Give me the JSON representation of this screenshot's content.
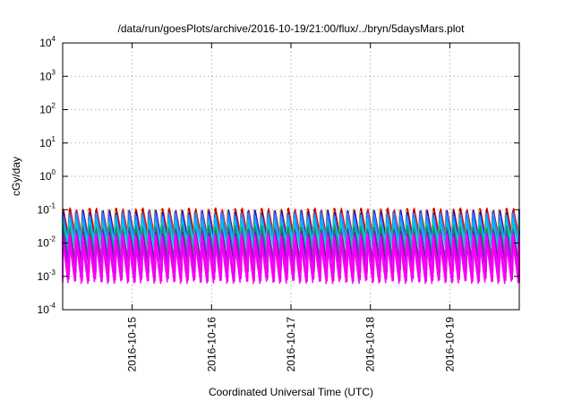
{
  "chart_data": {
    "type": "line",
    "title": "/data/run/goesPlots/archive/2016-10-19/21:00/flux/../bryn/5daysMars.plot",
    "xlabel": "Coordinated Universal Time (UTC)",
    "ylabel": "cGy/day",
    "yscale": "log",
    "ylim": [
      0.0001,
      10000
    ],
    "xlim": [
      "2016-10-14T03:00",
      "2016-10-19T21:00"
    ],
    "grid": true,
    "y_ticks": [
      {
        "base": "10",
        "exp": "-4",
        "value": 0.0001
      },
      {
        "base": "10",
        "exp": "-3",
        "value": 0.001
      },
      {
        "base": "10",
        "exp": "-2",
        "value": 0.01
      },
      {
        "base": "10",
        "exp": "-1",
        "value": 0.1
      },
      {
        "base": "10",
        "exp": "0",
        "value": 1
      },
      {
        "base": "10",
        "exp": "1",
        "value": 10
      },
      {
        "base": "10",
        "exp": "2",
        "value": 100
      },
      {
        "base": "10",
        "exp": "3",
        "value": 1000
      },
      {
        "base": "10",
        "exp": "4",
        "value": 10000
      }
    ],
    "x_ticks": [
      "2016-10-15",
      "2016-10-16",
      "2016-10-17",
      "2016-10-18",
      "2016-10-19"
    ],
    "sawtooth_period_hours": 2,
    "series": [
      {
        "color": "#ff0000",
        "peak": 0.1,
        "trough": 0.012
      },
      {
        "color": "#8b0000",
        "peak": 0.095,
        "trough": 0.009
      },
      {
        "color": "#ffa500",
        "peak": 0.09,
        "trough": 0.011
      },
      {
        "color": "#0000ff",
        "peak": 0.085,
        "trough": 0.008
      },
      {
        "color": "#4169e1",
        "peak": 0.08,
        "trough": 0.01
      },
      {
        "color": "#1e90ff",
        "peak": 0.07,
        "trough": 0.007
      },
      {
        "color": "#00bfff",
        "peak": 0.05,
        "trough": 0.006
      },
      {
        "color": "#00ced1",
        "peak": 0.035,
        "trough": 0.012
      },
      {
        "color": "#2e8b57",
        "peak": 0.03,
        "trough": 0.003
      },
      {
        "color": "#008b8b",
        "peak": 0.025,
        "trough": 0.0035
      },
      {
        "color": "#9400d3",
        "peak": 0.02,
        "trough": 0.0015
      },
      {
        "color": "#ff00ff",
        "peak": 0.018,
        "trough": 0.001
      },
      {
        "color": "#ff00ff",
        "peak": 0.015,
        "trough": 0.0007
      },
      {
        "color": "#ee00ee",
        "peak": 0.012,
        "trough": 0.0008
      }
    ]
  }
}
